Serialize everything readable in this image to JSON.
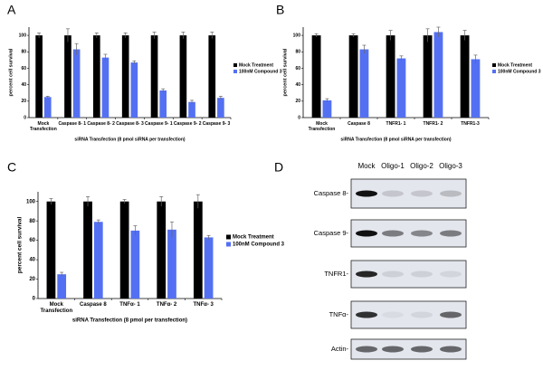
{
  "chart_data": [
    {
      "type": "bar",
      "panel": "A",
      "ylabel": "percent cell survival",
      "xlabel": "siRNA Transfection (8 pmol siRNA per transfection)",
      "categories": [
        "Mock Transfection",
        "Caspase 8- 1",
        "Caspase 8- 2",
        "Caspase 8- 3",
        "Caspase 9- 1",
        "Caspase 9- 2",
        "Caspase 9- 3"
      ],
      "series": [
        {
          "name": "Mock Treatment",
          "color": "#000000",
          "values": [
            100,
            100,
            100,
            100,
            100,
            100,
            100
          ],
          "errors": [
            3,
            8,
            3,
            3,
            4,
            4,
            4
          ]
        },
        {
          "name": "100nM Compound 3",
          "color": "#5470f2",
          "values": [
            25,
            83,
            73,
            67,
            33,
            19,
            24
          ],
          "errors": [
            1,
            7,
            4,
            2,
            2,
            2,
            2
          ]
        }
      ],
      "ylim": [
        0,
        110
      ],
      "yticks": [
        0,
        20,
        40,
        60,
        80,
        100
      ],
      "legend": "right"
    },
    {
      "type": "bar",
      "panel": "B",
      "ylabel": "percent cell survival",
      "xlabel": "siRNA Transfection (8 pmol siRNA per transfection)",
      "categories": [
        "Mock Transfection",
        "Caspase 8",
        "TNFR1- 1",
        "TNFR1- 2",
        "TNFR1-3"
      ],
      "series": [
        {
          "name": "Mock Treatment",
          "color": "#000000",
          "values": [
            100,
            100,
            100,
            100,
            100
          ],
          "errors": [
            2,
            2,
            6,
            8,
            6
          ]
        },
        {
          "name": "100nM Compound 3",
          "color": "#5470f2",
          "values": [
            21,
            83,
            72,
            104,
            71
          ],
          "errors": [
            2,
            5,
            3,
            6,
            5
          ]
        }
      ],
      "ylim": [
        0,
        110
      ],
      "yticks": [
        0,
        20,
        40,
        60,
        80,
        100
      ],
      "legend": "right"
    },
    {
      "type": "bar",
      "panel": "C",
      "ylabel": "percent cell survival",
      "xlabel": "siRNA Transfection (8 pmol per transfection)",
      "categories": [
        "Mock Transfection",
        "Caspase 8",
        "TNFα- 1",
        "TNFα- 2",
        "TNFα- 3"
      ],
      "series": [
        {
          "name": "Mock Treatment",
          "color": "#000000",
          "values": [
            100,
            100,
            100,
            100,
            100
          ],
          "errors": [
            3,
            5,
            2,
            5,
            7
          ]
        },
        {
          "name": "100nM Compound 3",
          "color": "#5470f2",
          "values": [
            25,
            79,
            70,
            71,
            63
          ],
          "errors": [
            2,
            2,
            5,
            8,
            2
          ]
        }
      ],
      "ylim": [
        0,
        110
      ],
      "yticks": [
        0,
        20,
        40,
        60,
        80,
        100
      ],
      "legend": "right"
    }
  ],
  "blot": {
    "panel": "D",
    "lanes": [
      "Mock",
      "Oligo-1",
      "Oligo-2",
      "Oligo-3"
    ],
    "rows": [
      "Caspase 8-",
      "Caspase 9-",
      "TNFR1-",
      "TNFα-",
      "Actin-"
    ]
  }
}
